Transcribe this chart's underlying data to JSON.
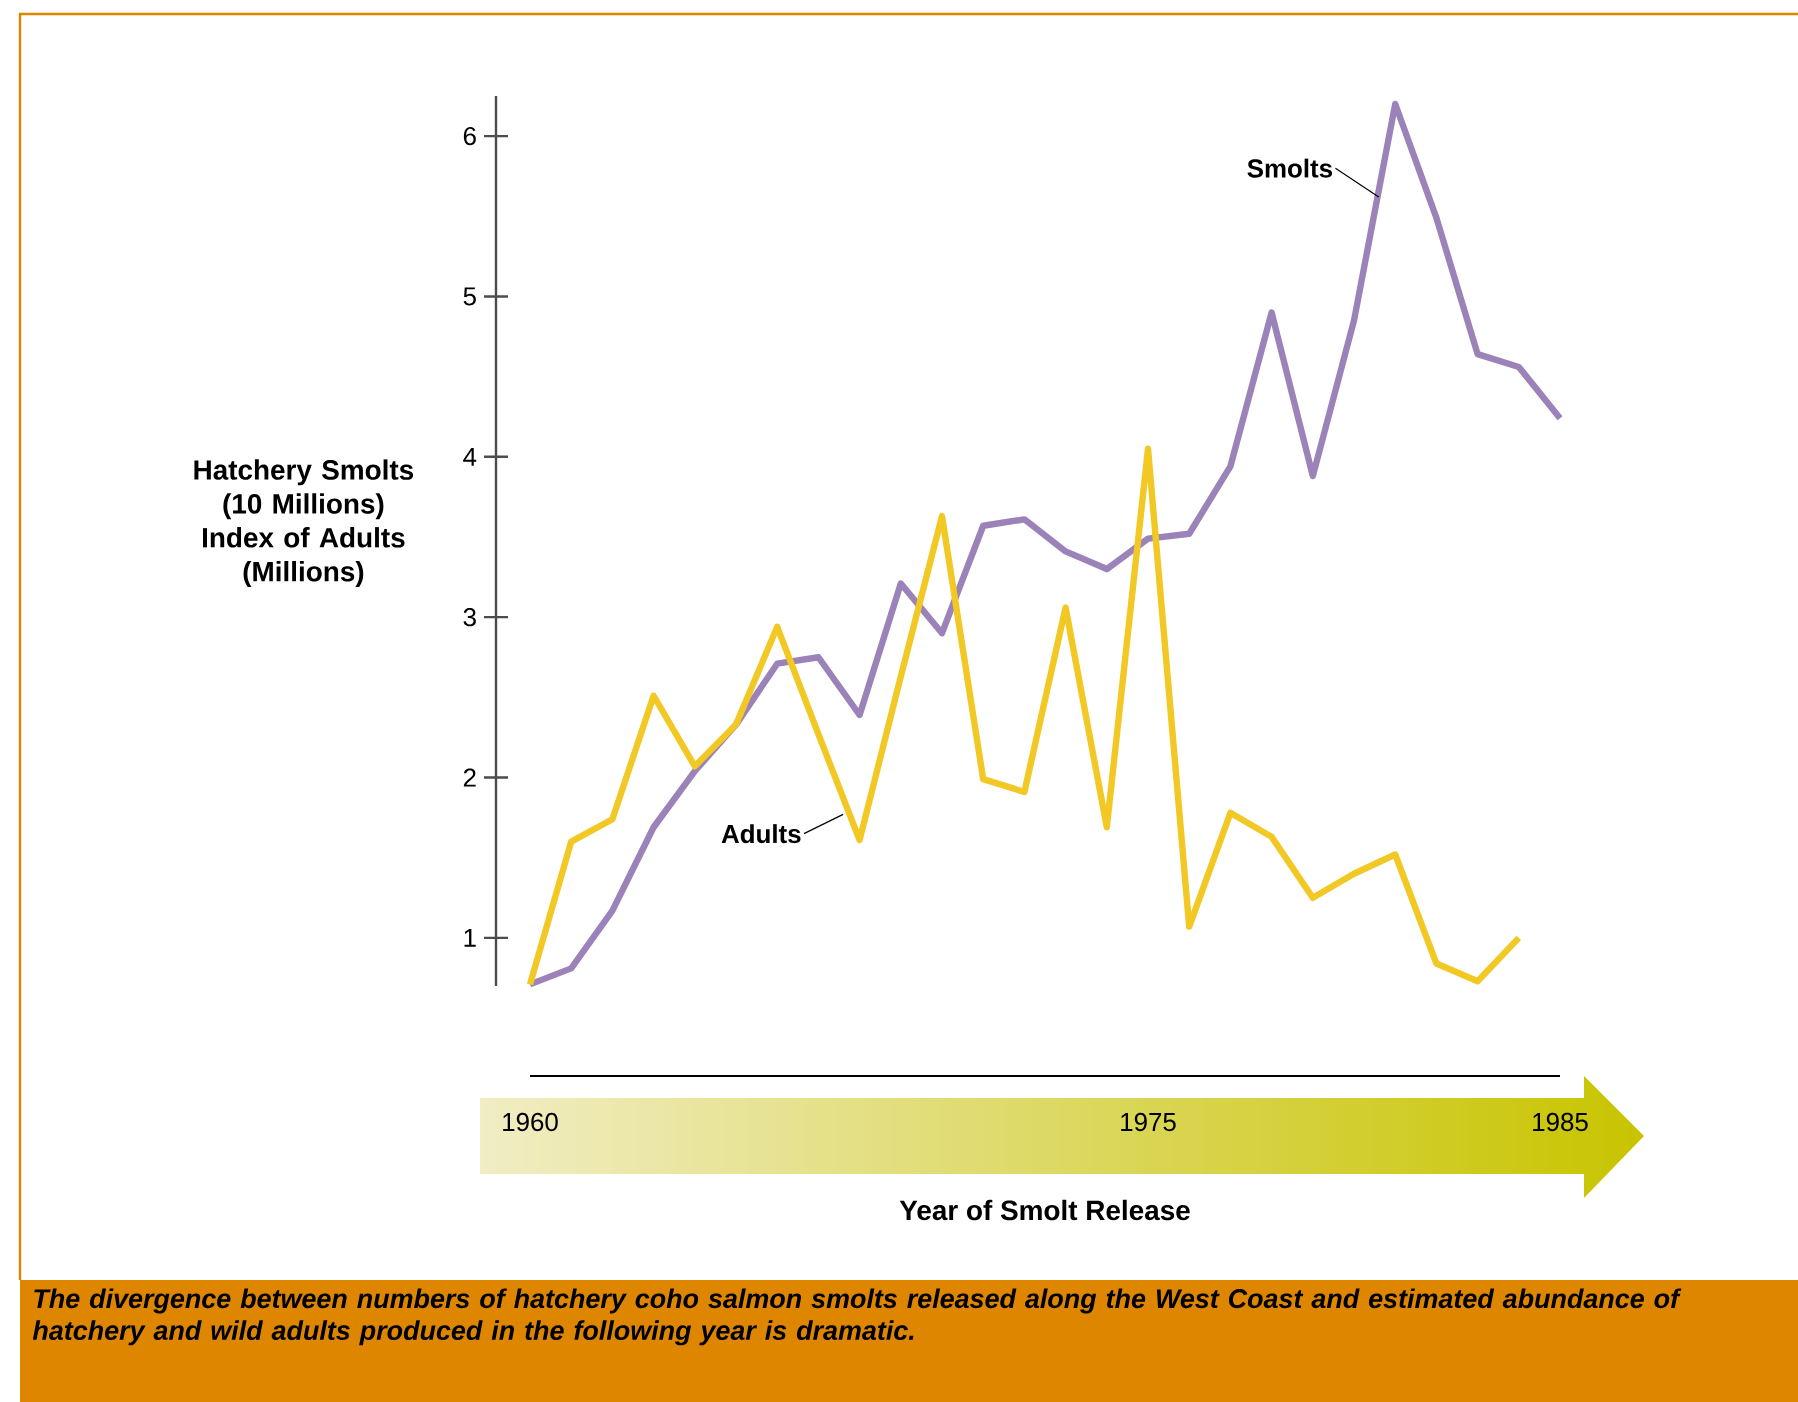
{
  "chart_data": {
    "type": "line",
    "xlabel": "Year of Smolt Release",
    "ylabel": "Hatchery Smolts (10 Millions) Index of Adults (Millions)",
    "annotations": [
      "The divergence between numbers of hatchery coho salmon smolts released along the West Coast and estimated abundance of hatchery and wild adults produced in the following year is dramatic."
    ],
    "x": [
      1960,
      1961,
      1962,
      1963,
      1964,
      1965,
      1966,
      1967,
      1968,
      1969,
      1970,
      1971,
      1972,
      1973,
      1974,
      1975,
      1976,
      1977,
      1978,
      1979,
      1980,
      1981,
      1982,
      1983,
      1984,
      1985
    ],
    "series": [
      {
        "name": "Smolts",
        "color": "#9b82b8",
        "values": [
          0.71,
          0.81,
          1.17,
          1.69,
          2.04,
          2.33,
          2.71,
          2.75,
          2.39,
          3.21,
          2.9,
          3.57,
          3.61,
          3.41,
          3.3,
          3.49,
          3.52,
          3.94,
          4.9,
          3.88,
          4.85,
          6.2,
          5.49,
          4.64,
          4.56,
          4.24
        ]
      },
      {
        "name": "Adults",
        "color": "#f2c824",
        "values": [
          0.71,
          1.6,
          1.74,
          2.51,
          2.07,
          2.33,
          2.94,
          2.27,
          1.61,
          2.63,
          3.63,
          1.99,
          1.91,
          3.06,
          1.69,
          4.05,
          1.07,
          1.78,
          1.63,
          1.25,
          1.4,
          1.52,
          0.84,
          0.73,
          1.0,
          null
        ]
      }
    ],
    "xlim": [
      1960,
      1985
    ],
    "xticks": [
      1960,
      1975,
      1985
    ],
    "ylim": [
      0.7,
      6.25
    ],
    "yticks": [
      1,
      2,
      3,
      4,
      5,
      6
    ],
    "grid": false,
    "legend": false,
    "marker": "none",
    "line_style": "solid"
  }
}
